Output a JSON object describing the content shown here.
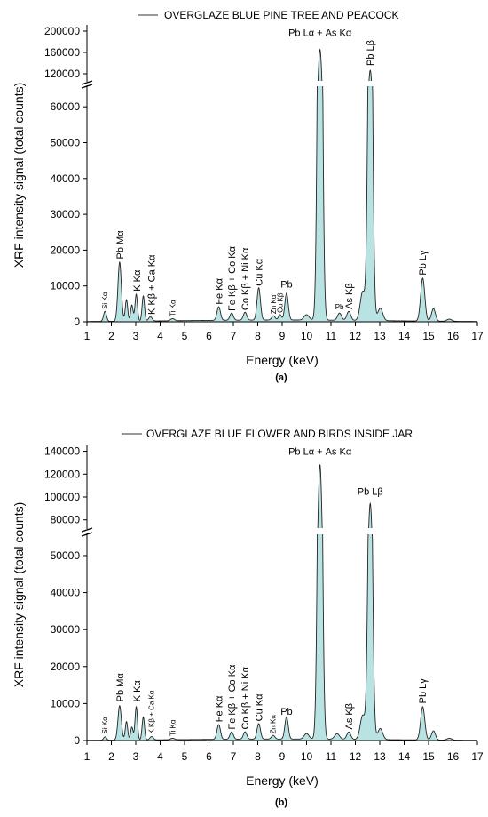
{
  "chart_data": [
    {
      "type": "area",
      "panel_label": "(a)",
      "legend": "OVERGLAZE BLUE PINE TREE AND PEACOCK",
      "xlabel": "Energy (keV)",
      "ylabel": "XRF intensity signal (total counts)",
      "xlim": [
        1,
        17
      ],
      "x_ticks": [
        1,
        2,
        3,
        4,
        5,
        6,
        7,
        8,
        9,
        10,
        11,
        12,
        13,
        14,
        15,
        16,
        17
      ],
      "y_lower_ticks": [
        0,
        10000,
        20000,
        30000,
        40000,
        50000,
        60000
      ],
      "y_upper_ticks": [
        120000,
        160000,
        200000
      ],
      "ylim_lower": [
        0,
        66000
      ],
      "ylim_upper": [
        105000,
        205000
      ],
      "fill_color": "#b9e3e2",
      "line_color": "#222222",
      "background_counts": 500,
      "peaks": [
        {
          "x": 1.74,
          "y": 2800,
          "w": 0.06
        },
        {
          "x": 2.34,
          "y": 16500,
          "w": 0.07
        },
        {
          "x": 2.62,
          "y": 6000,
          "w": 0.05
        },
        {
          "x": 2.84,
          "y": 4500,
          "w": 0.05
        },
        {
          "x": 3.02,
          "y": 7500,
          "w": 0.05
        },
        {
          "x": 3.31,
          "y": 7000,
          "w": 0.05
        },
        {
          "x": 3.6,
          "y": 1200,
          "w": 0.07
        },
        {
          "x": 4.51,
          "y": 600,
          "w": 0.08
        },
        {
          "x": 6.4,
          "y": 3800,
          "w": 0.07
        },
        {
          "x": 6.93,
          "y": 2000,
          "w": 0.07
        },
        {
          "x": 7.48,
          "y": 2200,
          "w": 0.07
        },
        {
          "x": 8.04,
          "y": 9000,
          "w": 0.07
        },
        {
          "x": 8.64,
          "y": 1200,
          "w": 0.07
        },
        {
          "x": 8.91,
          "y": 1500,
          "w": 0.06
        },
        {
          "x": 9.18,
          "y": 7500,
          "w": 0.07
        },
        {
          "x": 10.0,
          "y": 1500,
          "w": 0.1
        },
        {
          "x": 10.55,
          "y": 165000,
          "w": 0.085
        },
        {
          "x": 11.35,
          "y": 2000,
          "w": 0.08
        },
        {
          "x": 11.73,
          "y": 2500,
          "w": 0.08
        },
        {
          "x": 12.3,
          "y": 8000,
          "w": 0.1
        },
        {
          "x": 12.61,
          "y": 126000,
          "w": 0.085
        },
        {
          "x": 13.02,
          "y": 3500,
          "w": 0.1
        },
        {
          "x": 14.76,
          "y": 12000,
          "w": 0.085
        },
        {
          "x": 15.2,
          "y": 3500,
          "w": 0.08
        },
        {
          "x": 15.85,
          "y": 600,
          "w": 0.1
        }
      ],
      "labels": [
        {
          "text": "Si Kα",
          "x": 1.74,
          "y": 3500,
          "size": "small",
          "vertical": true
        },
        {
          "text": "Pb Mα",
          "x": 2.35,
          "y": 17500,
          "size": "normal",
          "vertical": true
        },
        {
          "text": "K Kα",
          "x": 3.05,
          "y": 8500,
          "size": "normal",
          "vertical": true
        },
        {
          "text": "K Kβ + Ca Kα",
          "x": 3.65,
          "y": 2000,
          "size": "normal",
          "vertical": true
        },
        {
          "text": "Ti Kα",
          "x": 4.51,
          "y": 1500,
          "size": "small",
          "vertical": true
        },
        {
          "text": "Fe Kα",
          "x": 6.4,
          "y": 4800,
          "size": "normal",
          "vertical": true
        },
        {
          "text": "Fe Kβ + Co Kα",
          "x": 6.93,
          "y": 3000,
          "size": "normal",
          "vertical": true
        },
        {
          "text": "Co Kβ + Ni Kα",
          "x": 7.48,
          "y": 3200,
          "size": "normal",
          "vertical": true
        },
        {
          "text": "Cu Kα",
          "x": 8.04,
          "y": 10000,
          "size": "normal",
          "vertical": true
        },
        {
          "text": "Zn Kα",
          "x": 8.64,
          "y": 2200,
          "size": "small",
          "vertical": true
        },
        {
          "text": "Cu Kβ",
          "x": 8.91,
          "y": 2500,
          "size": "small",
          "vertical": true
        },
        {
          "text": "Pb",
          "x": 9.18,
          "y": 9500,
          "size": "normal",
          "vertical": false
        },
        {
          "text": "Pb Lα + As Kα",
          "x": 10.55,
          "y": 191000,
          "size": "normal",
          "vertical": false
        },
        {
          "text": "Pb",
          "x": 11.35,
          "y": 3500,
          "size": "small",
          "vertical": false
        },
        {
          "text": "As Kβ",
          "x": 11.73,
          "y": 3500,
          "size": "normal",
          "vertical": true
        },
        {
          "text": "Pb Lβ",
          "x": 12.61,
          "y": 135000,
          "size": "normal",
          "vertical": true
        },
        {
          "text": "Pb Lγ",
          "x": 14.76,
          "y": 13000,
          "size": "normal",
          "vertical": true
        }
      ]
    },
    {
      "type": "area",
      "panel_label": "(b)",
      "legend": "OVERGLAZE BLUE FLOWER AND BIRDS INSIDE JAR",
      "xlabel": "Energy (keV)",
      "ylabel": "XRF intensity signal (total counts)",
      "xlim": [
        1,
        17
      ],
      "x_ticks": [
        1,
        2,
        3,
        4,
        5,
        6,
        7,
        8,
        9,
        10,
        11,
        12,
        13,
        14,
        15,
        16,
        17
      ],
      "y_lower_ticks": [
        0,
        10000,
        20000,
        30000,
        40000,
        50000
      ],
      "y_upper_ticks": [
        80000,
        100000,
        120000,
        140000
      ],
      "ylim_lower": [
        0,
        56000
      ],
      "ylim_upper": [
        72000,
        142000
      ],
      "fill_color": "#b9e3e2",
      "line_color": "#222222",
      "background_counts": 400,
      "peaks": [
        {
          "x": 1.74,
          "y": 900,
          "w": 0.06
        },
        {
          "x": 2.34,
          "y": 9300,
          "w": 0.07
        },
        {
          "x": 2.62,
          "y": 5000,
          "w": 0.05
        },
        {
          "x": 2.84,
          "y": 3500,
          "w": 0.05
        },
        {
          "x": 3.02,
          "y": 9000,
          "w": 0.05
        },
        {
          "x": 3.31,
          "y": 6200,
          "w": 0.05
        },
        {
          "x": 3.65,
          "y": 900,
          "w": 0.07
        },
        {
          "x": 4.51,
          "y": 400,
          "w": 0.08
        },
        {
          "x": 6.4,
          "y": 4000,
          "w": 0.07
        },
        {
          "x": 6.93,
          "y": 2000,
          "w": 0.07
        },
        {
          "x": 7.48,
          "y": 2000,
          "w": 0.07
        },
        {
          "x": 8.04,
          "y": 4200,
          "w": 0.07
        },
        {
          "x": 8.63,
          "y": 1000,
          "w": 0.07
        },
        {
          "x": 9.18,
          "y": 6000,
          "w": 0.07
        },
        {
          "x": 10.0,
          "y": 1500,
          "w": 0.1
        },
        {
          "x": 10.55,
          "y": 128000,
          "w": 0.085
        },
        {
          "x": 11.25,
          "y": 1500,
          "w": 0.1
        },
        {
          "x": 11.73,
          "y": 2000,
          "w": 0.08
        },
        {
          "x": 12.3,
          "y": 6500,
          "w": 0.1
        },
        {
          "x": 12.61,
          "y": 94000,
          "w": 0.085
        },
        {
          "x": 13.02,
          "y": 3000,
          "w": 0.1
        },
        {
          "x": 14.76,
          "y": 9000,
          "w": 0.085
        },
        {
          "x": 15.2,
          "y": 2500,
          "w": 0.08
        },
        {
          "x": 15.85,
          "y": 500,
          "w": 0.1
        }
      ],
      "labels": [
        {
          "text": "Si Kα",
          "x": 1.74,
          "y": 1800,
          "size": "small",
          "vertical": true
        },
        {
          "text": "Pb Mα",
          "x": 2.35,
          "y": 10500,
          "size": "normal",
          "vertical": true
        },
        {
          "text": "K Kα",
          "x": 3.05,
          "y": 10500,
          "size": "normal",
          "vertical": true
        },
        {
          "text": "K Kβ + Ca Kα",
          "x": 3.65,
          "y": 1800,
          "size": "small",
          "vertical": true
        },
        {
          "text": "Ti Kα",
          "x": 4.51,
          "y": 1200,
          "size": "small",
          "vertical": true
        },
        {
          "text": "Fe Kα",
          "x": 6.4,
          "y": 5000,
          "size": "normal",
          "vertical": true
        },
        {
          "text": "Fe Kβ + Co Kα",
          "x": 6.93,
          "y": 3000,
          "size": "normal",
          "vertical": true
        },
        {
          "text": "Co Kβ + Ni Kα",
          "x": 7.48,
          "y": 3000,
          "size": "normal",
          "vertical": true
        },
        {
          "text": "Cu Kα",
          "x": 8.04,
          "y": 5200,
          "size": "normal",
          "vertical": true
        },
        {
          "text": "Zn Kα",
          "x": 8.63,
          "y": 1800,
          "size": "small",
          "vertical": true
        },
        {
          "text": "Pb",
          "x": 9.18,
          "y": 7000,
          "size": "normal",
          "vertical": false
        },
        {
          "text": "Pb Lα + As Kα",
          "x": 10.55,
          "y": 137000,
          "size": "normal",
          "vertical": false
        },
        {
          "text": "As Kβ",
          "x": 11.73,
          "y": 3000,
          "size": "normal",
          "vertical": true
        },
        {
          "text": "Pb Lβ",
          "x": 12.61,
          "y": 102000,
          "size": "normal",
          "vertical": false
        },
        {
          "text": "Pb Lγ",
          "x": 14.76,
          "y": 10000,
          "size": "normal",
          "vertical": true
        }
      ]
    }
  ]
}
